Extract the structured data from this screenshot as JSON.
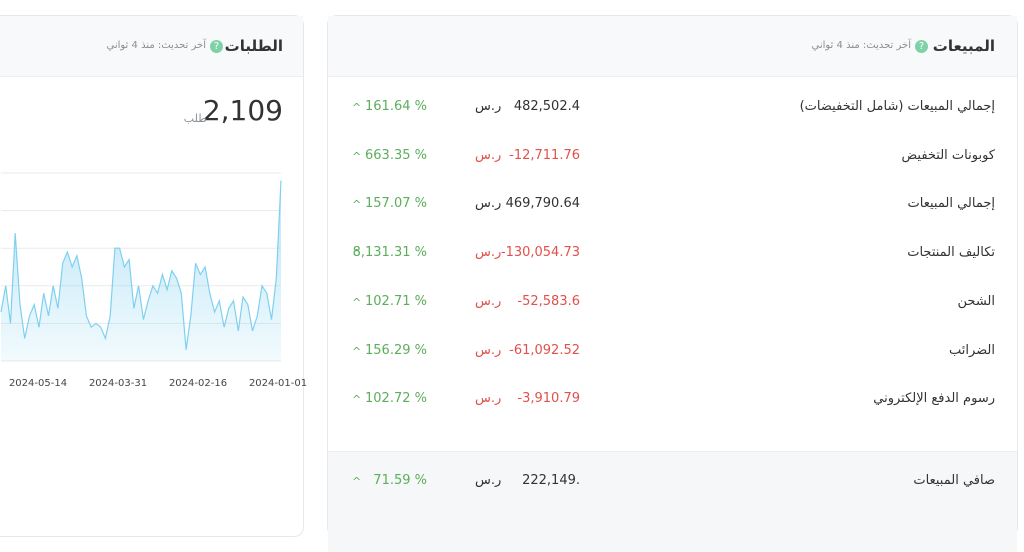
{
  "sales": {
    "title": "المبيعات",
    "updated": "آخر تحديث: منذ 4 ثواني",
    "currency": "ر.س",
    "rows": [
      {
        "label": "إجمالي المبيعات (شامل التخفيضات)",
        "value": "482,502.4",
        "change": "161.64 %"
      },
      {
        "label": "كوبونات التخفيض",
        "value": "-12,711.76",
        "change": "663.35 %"
      },
      {
        "label": "إجمالي المبيعات",
        "value": "469,790.64",
        "change": "157.07 %"
      },
      {
        "label": "تكاليف المنتجات",
        "value": "-130,054.73",
        "change": "8,131.31 %"
      },
      {
        "label": "الشحن",
        "value": "-52,583.6",
        "change": "102.71 %"
      },
      {
        "label": "الضرائب",
        "value": "-61,092.52",
        "change": "156.29 %"
      },
      {
        "label": "رسوم الدفع الإلكتروني",
        "value": "-3,910.79",
        "change": "102.72 %"
      }
    ],
    "total": {
      "label": "صافي المبيعات",
      "value": "222,149.",
      "change": "71.59 %"
    }
  },
  "orders": {
    "title": "الطلبات",
    "updated": "آخر تحديث: منذ 4 ثواني",
    "count": "2,109",
    "unit": "طلب",
    "chart": {
      "type": "area",
      "color": "#7fd0f0",
      "values": [
        1.3,
        2.0,
        1.0,
        3.4,
        1.5,
        0.6,
        1.2,
        1.5,
        0.9,
        1.8,
        1.2,
        2.0,
        1.4,
        2.6,
        2.9,
        2.5,
        2.8,
        2.2,
        1.2,
        0.9,
        1.0,
        0.9,
        0.6,
        1.2,
        3.0,
        3.0,
        2.5,
        2.7,
        1.4,
        2.0,
        1.1,
        1.6,
        2.0,
        1.8,
        2.3,
        1.9,
        2.4,
        2.2,
        1.8,
        0.3,
        1.2,
        2.6,
        2.3,
        2.5,
        1.8,
        1.3,
        1.6,
        0.9,
        1.4,
        1.6,
        0.8,
        1.7,
        1.5,
        0.8,
        1.2,
        2.0,
        1.8,
        1.1,
        2.2,
        4.8
      ],
      "ylim": [
        0,
        5
      ],
      "yticks": [
        0,
        1,
        2,
        3,
        4,
        5
      ],
      "x_labels": [
        "2024-05-14",
        "2024-03-31",
        "2024-02-16",
        "2024-01-01"
      ]
    }
  }
}
